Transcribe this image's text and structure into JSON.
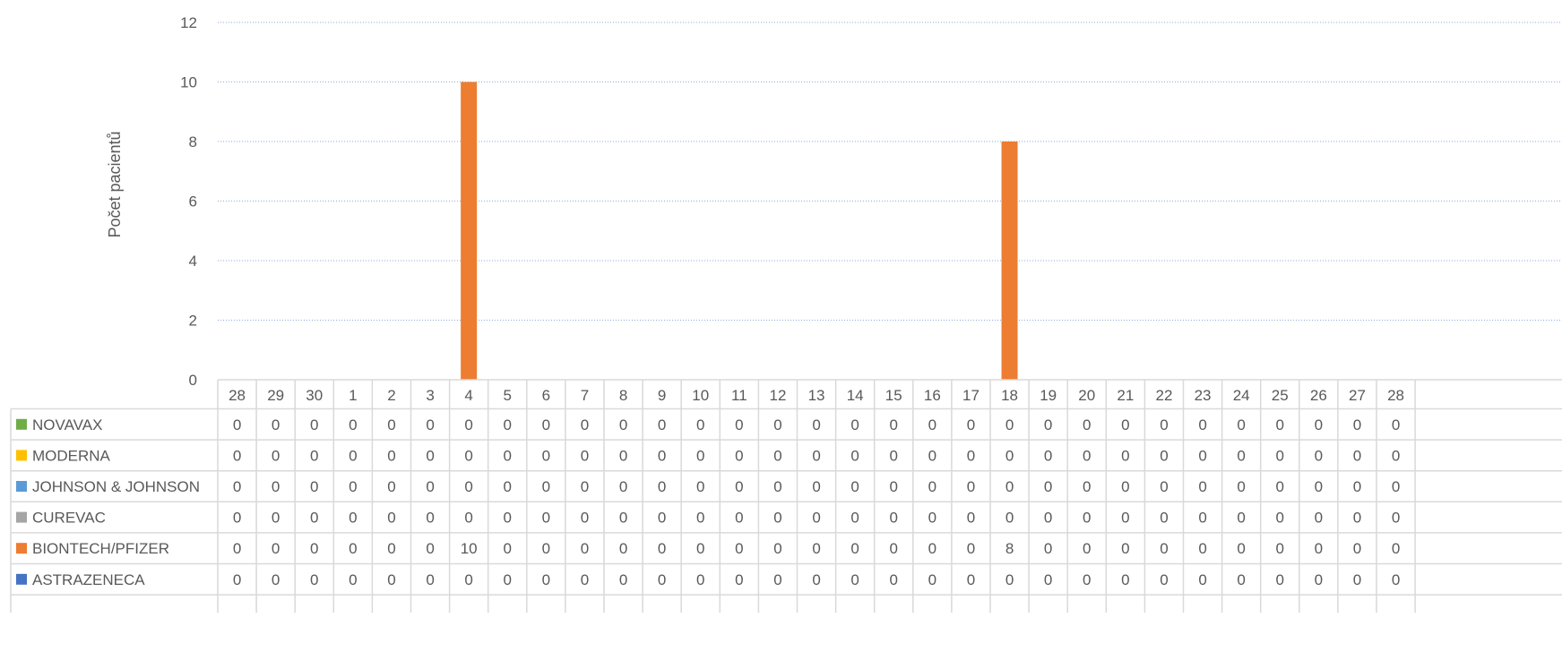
{
  "chart_data": {
    "type": "bar",
    "stacked": true,
    "title": "",
    "xlabel": "",
    "ylabel": "Počet pacientů",
    "ylim": [
      0,
      12
    ],
    "yticks": [
      0,
      2,
      4,
      6,
      8,
      10,
      12
    ],
    "grid": true,
    "legend": "data-table-left",
    "categories": [
      "28",
      "29",
      "30",
      "1",
      "2",
      "3",
      "4",
      "5",
      "6",
      "7",
      "8",
      "9",
      "10",
      "11",
      "12",
      "13",
      "14",
      "15",
      "16",
      "17",
      "18",
      "19",
      "20",
      "21",
      "22",
      "23",
      "24",
      "25",
      "26",
      "27",
      "28"
    ],
    "series": [
      {
        "name": "NOVAVAX",
        "color": "#70AD47",
        "values": [
          0,
          0,
          0,
          0,
          0,
          0,
          0,
          0,
          0,
          0,
          0,
          0,
          0,
          0,
          0,
          0,
          0,
          0,
          0,
          0,
          0,
          0,
          0,
          0,
          0,
          0,
          0,
          0,
          0,
          0,
          0
        ]
      },
      {
        "name": "MODERNA",
        "color": "#FFC000",
        "values": [
          0,
          0,
          0,
          0,
          0,
          0,
          0,
          0,
          0,
          0,
          0,
          0,
          0,
          0,
          0,
          0,
          0,
          0,
          0,
          0,
          0,
          0,
          0,
          0,
          0,
          0,
          0,
          0,
          0,
          0,
          0
        ]
      },
      {
        "name": "JOHNSON & JOHNSON",
        "color": "#5B9BD5",
        "values": [
          0,
          0,
          0,
          0,
          0,
          0,
          0,
          0,
          0,
          0,
          0,
          0,
          0,
          0,
          0,
          0,
          0,
          0,
          0,
          0,
          0,
          0,
          0,
          0,
          0,
          0,
          0,
          0,
          0,
          0,
          0
        ]
      },
      {
        "name": "CUREVAC",
        "color": "#A5A5A5",
        "values": [
          0,
          0,
          0,
          0,
          0,
          0,
          0,
          0,
          0,
          0,
          0,
          0,
          0,
          0,
          0,
          0,
          0,
          0,
          0,
          0,
          0,
          0,
          0,
          0,
          0,
          0,
          0,
          0,
          0,
          0,
          0
        ]
      },
      {
        "name": "BIONTECH/PFIZER",
        "color": "#ED7D31",
        "values": [
          0,
          0,
          0,
          0,
          0,
          0,
          10,
          0,
          0,
          0,
          0,
          0,
          0,
          0,
          0,
          0,
          0,
          0,
          0,
          0,
          8,
          0,
          0,
          0,
          0,
          0,
          0,
          0,
          0,
          0,
          0
        ]
      },
      {
        "name": "ASTRAZENECA",
        "color": "#4472C4",
        "values": [
          0,
          0,
          0,
          0,
          0,
          0,
          0,
          0,
          0,
          0,
          0,
          0,
          0,
          0,
          0,
          0,
          0,
          0,
          0,
          0,
          0,
          0,
          0,
          0,
          0,
          0,
          0,
          0,
          0,
          0,
          0
        ]
      }
    ]
  }
}
